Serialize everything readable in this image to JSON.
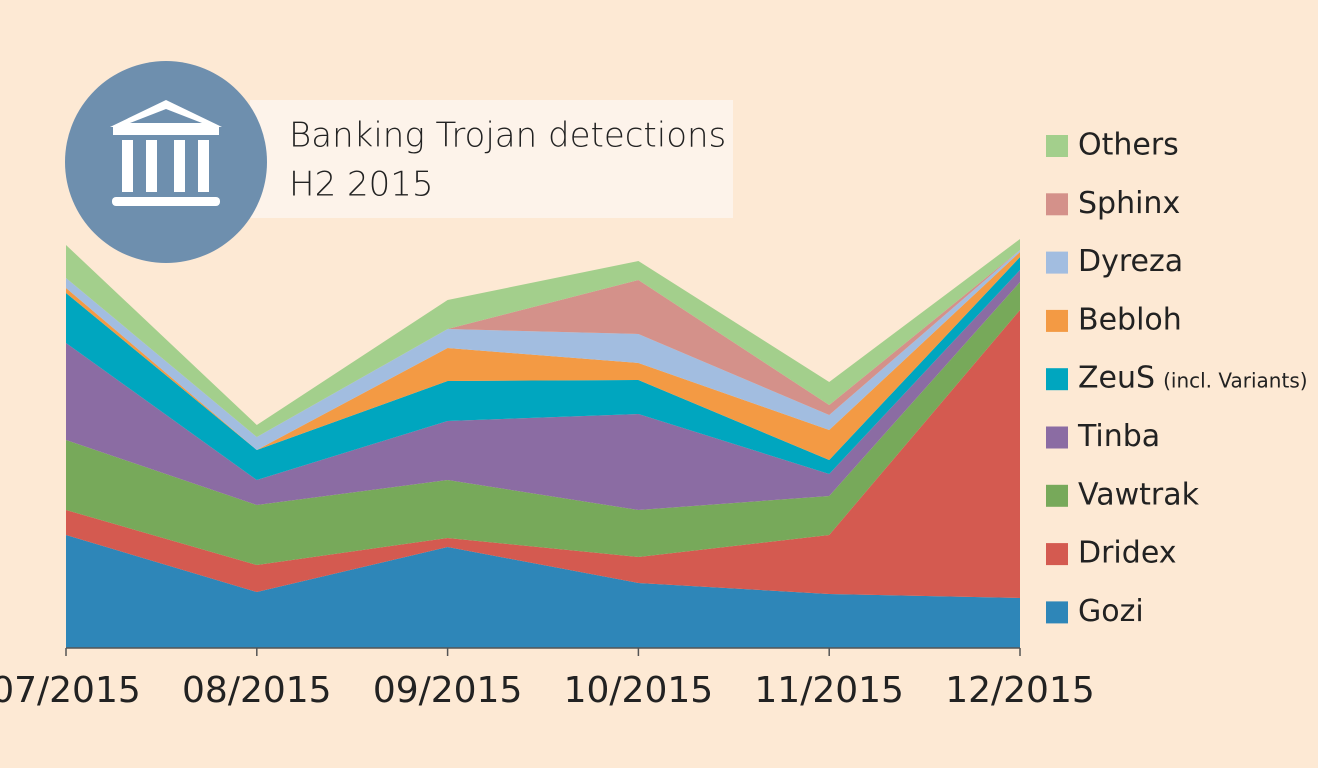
{
  "chart_data": {
    "type": "stacked_area",
    "title": "Banking Trojan detections",
    "subtitle": "H2 2015",
    "categories": [
      "07/2015",
      "08/2015",
      "09/2015",
      "10/2015",
      "11/2015",
      "12/2015"
    ],
    "series": [
      {
        "name": "Gozi",
        "color": "#2e86b8",
        "values": [
          113,
          56,
          101,
          65,
          54,
          50
        ]
      },
      {
        "name": "Dridex",
        "color": "#d45a50",
        "values": [
          25,
          27,
          9,
          26,
          59,
          288
        ]
      },
      {
        "name": "Vawtrak",
        "color": "#77a95a",
        "values": [
          70,
          60,
          58,
          47,
          39,
          28
        ]
      },
      {
        "name": "Tinba",
        "color": "#8b6ca3",
        "values": [
          97,
          25,
          59,
          96,
          22,
          12
        ]
      },
      {
        "name": "ZeuS",
        "name_note": "(incl. Variants)",
        "color": "#00a6bf",
        "values": [
          50,
          30,
          40,
          34,
          14,
          13
        ]
      },
      {
        "name": "Bebloh",
        "color": "#f39a44",
        "values": [
          5,
          0,
          33,
          17,
          30,
          5
        ]
      },
      {
        "name": "Dyreza",
        "color": "#a2bde0",
        "values": [
          10,
          13,
          19,
          29,
          15,
          2
        ]
      },
      {
        "name": "Sphinx",
        "color": "#d4918a",
        "values": [
          0,
          0,
          0,
          54,
          10,
          0
        ]
      },
      {
        "name": "Others",
        "color": "#a3cf8c",
        "values": [
          33,
          12,
          29,
          19,
          23,
          11
        ]
      }
    ]
  }
}
